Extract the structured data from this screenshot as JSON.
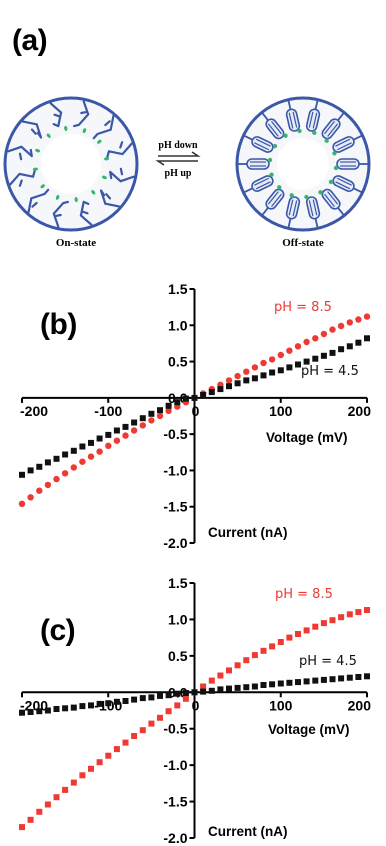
{
  "panels": {
    "a": {
      "label": "(a)",
      "left_state": "On-state",
      "right_state": "Off-state",
      "arrow_top": "pH down",
      "arrow_bottom": "pH up"
    },
    "b": {
      "label": "(b)"
    },
    "c": {
      "label": "(c)"
    }
  },
  "colors": {
    "red": "#ef3a33",
    "black": "#111111",
    "blue": "#3b57a8",
    "green": "#39b56a"
  },
  "chart_data": [
    {
      "type": "scatter",
      "panel": "b",
      "title": "",
      "xlabel": "Voltage (mV)",
      "ylabel": "Current (nA)",
      "xlim": [
        -200,
        200
      ],
      "ylim": [
        -2.0,
        1.5
      ],
      "xticks": [
        -200,
        -100,
        0,
        100,
        200
      ],
      "xtick_labels": [
        "-200",
        "-100",
        "0",
        "100",
        "200"
      ],
      "yticks": [
        1.5,
        1.0,
        0.5,
        0.0,
        -0.5,
        -1.0,
        -1.5,
        -2.0
      ],
      "ytick_labels": [
        "1.5",
        "1.0",
        "0.5",
        "0.0",
        "-0.5",
        "-1.0",
        "-1.5",
        "-2.0"
      ],
      "series": [
        {
          "name": "pH = 8.5",
          "color": "#ef3a33",
          "marker": "circle",
          "x": [
            -200,
            -190,
            -180,
            -170,
            -160,
            -150,
            -140,
            -130,
            -120,
            -110,
            -100,
            -90,
            -80,
            -70,
            -60,
            -50,
            -40,
            -30,
            -20,
            -10,
            0,
            10,
            20,
            30,
            40,
            50,
            60,
            70,
            80,
            90,
            100,
            110,
            120,
            130,
            140,
            150,
            160,
            170,
            180,
            190,
            200
          ],
          "y": [
            -1.46,
            -1.37,
            -1.28,
            -1.2,
            -1.12,
            -1.04,
            -0.96,
            -0.88,
            -0.81,
            -0.74,
            -0.66,
            -0.59,
            -0.52,
            -0.45,
            -0.38,
            -0.31,
            -0.25,
            -0.18,
            -0.12,
            -0.06,
            0.0,
            0.06,
            0.12,
            0.18,
            0.24,
            0.3,
            0.36,
            0.42,
            0.48,
            0.53,
            0.59,
            0.65,
            0.71,
            0.77,
            0.82,
            0.88,
            0.94,
            0.99,
            1.04,
            1.08,
            1.12
          ]
        },
        {
          "name": "pH = 4.5",
          "color": "#111111",
          "marker": "square",
          "x": [
            -200,
            -190,
            -180,
            -170,
            -160,
            -150,
            -140,
            -130,
            -120,
            -110,
            -100,
            -90,
            -80,
            -70,
            -60,
            -50,
            -40,
            -30,
            -20,
            -10,
            0,
            10,
            20,
            30,
            40,
            50,
            60,
            70,
            80,
            90,
            100,
            110,
            120,
            130,
            140,
            150,
            160,
            170,
            180,
            190,
            200
          ],
          "y": [
            -1.06,
            -1.0,
            -0.95,
            -0.89,
            -0.84,
            -0.78,
            -0.73,
            -0.67,
            -0.62,
            -0.56,
            -0.51,
            -0.45,
            -0.4,
            -0.34,
            -0.28,
            -0.22,
            -0.17,
            -0.11,
            -0.06,
            -0.01,
            0.0,
            0.04,
            0.08,
            0.12,
            0.16,
            0.2,
            0.24,
            0.27,
            0.31,
            0.35,
            0.38,
            0.42,
            0.46,
            0.5,
            0.54,
            0.58,
            0.62,
            0.67,
            0.71,
            0.76,
            0.82
          ]
        }
      ]
    },
    {
      "type": "scatter",
      "panel": "c",
      "title": "",
      "xlabel": "Voltage (mV)",
      "ylabel": "Current (nA)",
      "xlim": [
        -200,
        200
      ],
      "ylim": [
        -2.0,
        1.5
      ],
      "xticks": [
        -200,
        -100,
        0,
        100,
        200
      ],
      "xtick_labels": [
        "-200",
        "-100",
        "0",
        "100",
        "200"
      ],
      "yticks": [
        1.5,
        1.0,
        0.5,
        0.0,
        -0.5,
        -1.0,
        -1.5,
        -2.0
      ],
      "ytick_labels": [
        "1.5",
        "1.0",
        "0.5",
        "0.0",
        "-0.5",
        "-1.0",
        "-1.5",
        "-2.0"
      ],
      "series": [
        {
          "name": "pH = 8.5",
          "color": "#ef3a33",
          "marker": "square",
          "x": [
            -200,
            -190,
            -180,
            -170,
            -160,
            -150,
            -140,
            -130,
            -120,
            -110,
            -100,
            -90,
            -80,
            -70,
            -60,
            -50,
            -40,
            -30,
            -20,
            -10,
            0,
            10,
            20,
            30,
            40,
            50,
            60,
            70,
            80,
            90,
            100,
            110,
            120,
            130,
            140,
            150,
            160,
            170,
            180,
            190,
            200
          ],
          "y": [
            -1.85,
            -1.75,
            -1.64,
            -1.54,
            -1.44,
            -1.34,
            -1.24,
            -1.14,
            -1.05,
            -0.96,
            -0.87,
            -0.78,
            -0.69,
            -0.6,
            -0.52,
            -0.43,
            -0.35,
            -0.26,
            -0.18,
            -0.09,
            0.0,
            0.08,
            0.16,
            0.23,
            0.3,
            0.37,
            0.44,
            0.51,
            0.57,
            0.63,
            0.69,
            0.75,
            0.8,
            0.85,
            0.9,
            0.95,
            0.99,
            1.03,
            1.07,
            1.1,
            1.13
          ]
        },
        {
          "name": "pH = 4.5",
          "color": "#111111",
          "marker": "square",
          "x": [
            -200,
            -190,
            -180,
            -170,
            -160,
            -150,
            -140,
            -130,
            -120,
            -110,
            -100,
            -90,
            -80,
            -70,
            -60,
            -50,
            -40,
            -30,
            -20,
            -10,
            0,
            10,
            20,
            30,
            40,
            50,
            60,
            70,
            80,
            90,
            100,
            110,
            120,
            130,
            140,
            150,
            160,
            170,
            180,
            190,
            200
          ],
          "y": [
            -0.28,
            -0.27,
            -0.26,
            -0.25,
            -0.23,
            -0.22,
            -0.21,
            -0.19,
            -0.18,
            -0.16,
            -0.15,
            -0.13,
            -0.12,
            -0.1,
            -0.08,
            -0.07,
            -0.05,
            -0.04,
            -0.02,
            -0.01,
            0.0,
            0.01,
            0.02,
            0.04,
            0.05,
            0.06,
            0.07,
            0.08,
            0.1,
            0.11,
            0.12,
            0.13,
            0.14,
            0.15,
            0.16,
            0.17,
            0.18,
            0.19,
            0.2,
            0.21,
            0.22
          ]
        }
      ]
    }
  ]
}
